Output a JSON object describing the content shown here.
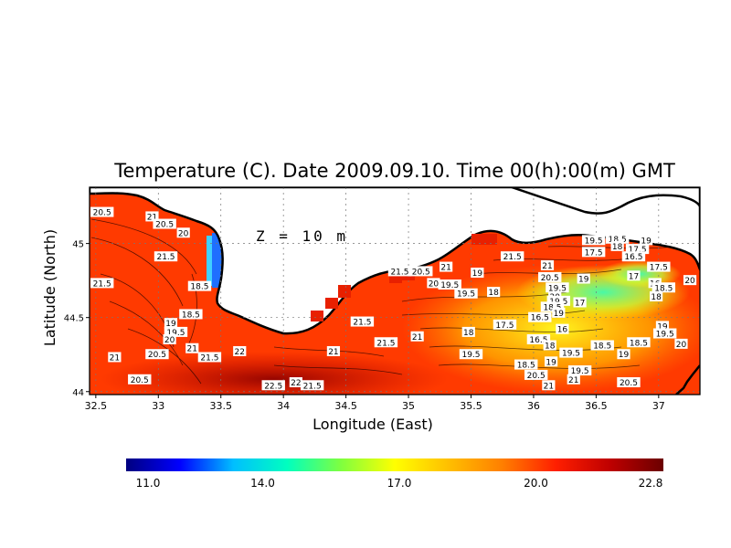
{
  "title": "Temperature (C). Date 2009.09.10. Time 00(h):00(m) GMT",
  "depth_label": "Z = 10 m",
  "xlabel": "Longitude (East)",
  "ylabel": "Latitude (North)",
  "colors": {
    "land": "#ffffff",
    "coastline": "#000000",
    "gridlines": "#777777"
  },
  "chart_data": {
    "type": "heatmap",
    "title": "Temperature (C). Date 2009.09.10. Time 00(h):00(m) GMT",
    "xlabel": "Longitude (East)",
    "ylabel": "Latitude (North)",
    "xlim": [
      32.45,
      37.33
    ],
    "ylim": [
      43.98,
      45.38
    ],
    "x_ticks": [
      "32.5",
      "33",
      "33.5",
      "34",
      "34.5",
      "35",
      "35.5",
      "36",
      "36.5",
      "37"
    ],
    "y_ticks": [
      "44",
      "44.5",
      "45"
    ],
    "grid": true,
    "colorbar": {
      "min": 11.0,
      "max": 22.8,
      "tick_values": [
        11.0,
        14.0,
        17.0,
        20.0,
        22.8
      ],
      "tick_labels": [
        "11.0",
        "14.0",
        "17.0",
        "20.0",
        "22.8"
      ],
      "stops": [
        "#00007f",
        "#0000ff",
        "#00bfff",
        "#00ffbf",
        "#7fff3f",
        "#ffff00",
        "#ffbf00",
        "#ff7f00",
        "#ff1f00",
        "#bf0000",
        "#6b0000"
      ]
    },
    "contour_labels": [
      {
        "lon": 32.55,
        "lat": 45.21,
        "text": "20.5"
      },
      {
        "lon": 32.95,
        "lat": 45.18,
        "text": "21"
      },
      {
        "lon": 33.05,
        "lat": 45.13,
        "text": "20.5"
      },
      {
        "lon": 33.2,
        "lat": 45.07,
        "text": "20"
      },
      {
        "lon": 33.06,
        "lat": 44.91,
        "text": "21.5"
      },
      {
        "lon": 32.55,
        "lat": 44.73,
        "text": "21.5"
      },
      {
        "lon": 33.33,
        "lat": 44.71,
        "text": "18.5"
      },
      {
        "lon": 33.26,
        "lat": 44.52,
        "text": "18.5"
      },
      {
        "lon": 33.1,
        "lat": 44.46,
        "text": "19"
      },
      {
        "lon": 33.14,
        "lat": 44.4,
        "text": "19.5"
      },
      {
        "lon": 33.09,
        "lat": 44.35,
        "text": "20"
      },
      {
        "lon": 33.27,
        "lat": 44.29,
        "text": "21"
      },
      {
        "lon": 32.99,
        "lat": 44.25,
        "text": "20.5"
      },
      {
        "lon": 33.41,
        "lat": 44.23,
        "text": "21.5"
      },
      {
        "lon": 33.65,
        "lat": 44.27,
        "text": "22"
      },
      {
        "lon": 32.65,
        "lat": 44.23,
        "text": "21"
      },
      {
        "lon": 32.85,
        "lat": 44.08,
        "text": "20.5"
      },
      {
        "lon": 34.4,
        "lat": 44.27,
        "text": "21"
      },
      {
        "lon": 34.63,
        "lat": 44.47,
        "text": "21.5"
      },
      {
        "lon": 35.07,
        "lat": 44.37,
        "text": "21"
      },
      {
        "lon": 34.82,
        "lat": 44.33,
        "text": "21.5"
      },
      {
        "lon": 33.92,
        "lat": 44.04,
        "text": "22.5"
      },
      {
        "lon": 34.1,
        "lat": 44.06,
        "text": "22"
      },
      {
        "lon": 34.23,
        "lat": 44.04,
        "text": "21.5"
      },
      {
        "lon": 34.93,
        "lat": 44.81,
        "text": "21.5"
      },
      {
        "lon": 35.1,
        "lat": 44.81,
        "text": "20.5"
      },
      {
        "lon": 35.3,
        "lat": 44.84,
        "text": "21"
      },
      {
        "lon": 35.2,
        "lat": 44.73,
        "text": "20"
      },
      {
        "lon": 35.33,
        "lat": 44.72,
        "text": "19.5"
      },
      {
        "lon": 35.55,
        "lat": 44.8,
        "text": "19"
      },
      {
        "lon": 35.68,
        "lat": 44.67,
        "text": "18"
      },
      {
        "lon": 35.46,
        "lat": 44.66,
        "text": "19.5"
      },
      {
        "lon": 35.83,
        "lat": 44.91,
        "text": "21.5"
      },
      {
        "lon": 36.11,
        "lat": 44.85,
        "text": "21"
      },
      {
        "lon": 36.13,
        "lat": 44.77,
        "text": "20.5"
      },
      {
        "lon": 36.19,
        "lat": 44.7,
        "text": "19.5"
      },
      {
        "lon": 36.17,
        "lat": 44.64,
        "text": "20"
      },
      {
        "lon": 36.2,
        "lat": 44.61,
        "text": "19.5"
      },
      {
        "lon": 36.15,
        "lat": 44.57,
        "text": "18.5"
      },
      {
        "lon": 36.2,
        "lat": 44.53,
        "text": "19"
      },
      {
        "lon": 36.05,
        "lat": 44.5,
        "text": "16.5"
      },
      {
        "lon": 36.4,
        "lat": 44.76,
        "text": "19"
      },
      {
        "lon": 36.37,
        "lat": 44.6,
        "text": "17"
      },
      {
        "lon": 35.77,
        "lat": 44.45,
        "text": "17.5"
      },
      {
        "lon": 35.48,
        "lat": 44.4,
        "text": "18"
      },
      {
        "lon": 36.04,
        "lat": 44.35,
        "text": "16.5"
      },
      {
        "lon": 36.23,
        "lat": 44.42,
        "text": "16"
      },
      {
        "lon": 36.13,
        "lat": 44.31,
        "text": "18"
      },
      {
        "lon": 36.3,
        "lat": 44.26,
        "text": "19.5"
      },
      {
        "lon": 36.55,
        "lat": 44.31,
        "text": "18.5"
      },
      {
        "lon": 36.84,
        "lat": 44.33,
        "text": "18.5"
      },
      {
        "lon": 36.72,
        "lat": 44.25,
        "text": "19"
      },
      {
        "lon": 37.03,
        "lat": 44.44,
        "text": "19"
      },
      {
        "lon": 37.05,
        "lat": 44.39,
        "text": "19.5"
      },
      {
        "lon": 37.18,
        "lat": 44.32,
        "text": "20"
      },
      {
        "lon": 36.14,
        "lat": 44.2,
        "text": "19"
      },
      {
        "lon": 35.94,
        "lat": 44.18,
        "text": "18.5"
      },
      {
        "lon": 35.5,
        "lat": 44.25,
        "text": "19.5"
      },
      {
        "lon": 36.02,
        "lat": 44.11,
        "text": "20.5"
      },
      {
        "lon": 36.37,
        "lat": 44.14,
        "text": "19.5"
      },
      {
        "lon": 36.32,
        "lat": 44.08,
        "text": "21"
      },
      {
        "lon": 36.12,
        "lat": 44.04,
        "text": "21"
      },
      {
        "lon": 36.76,
        "lat": 44.06,
        "text": "20.5"
      },
      {
        "lon": 36.48,
        "lat": 45.02,
        "text": "19.5"
      },
      {
        "lon": 36.67,
        "lat": 45.03,
        "text": "18.5"
      },
      {
        "lon": 36.9,
        "lat": 45.02,
        "text": "19"
      },
      {
        "lon": 36.67,
        "lat": 44.98,
        "text": "18"
      },
      {
        "lon": 36.83,
        "lat": 44.96,
        "text": "17.5"
      },
      {
        "lon": 36.48,
        "lat": 44.94,
        "text": "17.5"
      },
      {
        "lon": 36.8,
        "lat": 44.91,
        "text": "16.5"
      },
      {
        "lon": 37.0,
        "lat": 44.84,
        "text": "17.5"
      },
      {
        "lon": 36.8,
        "lat": 44.78,
        "text": "17"
      },
      {
        "lon": 36.97,
        "lat": 44.73,
        "text": "16"
      },
      {
        "lon": 37.04,
        "lat": 44.7,
        "text": "18.5"
      },
      {
        "lon": 36.98,
        "lat": 44.64,
        "text": "18"
      },
      {
        "lon": 37.25,
        "lat": 44.75,
        "text": "20"
      }
    ]
  }
}
